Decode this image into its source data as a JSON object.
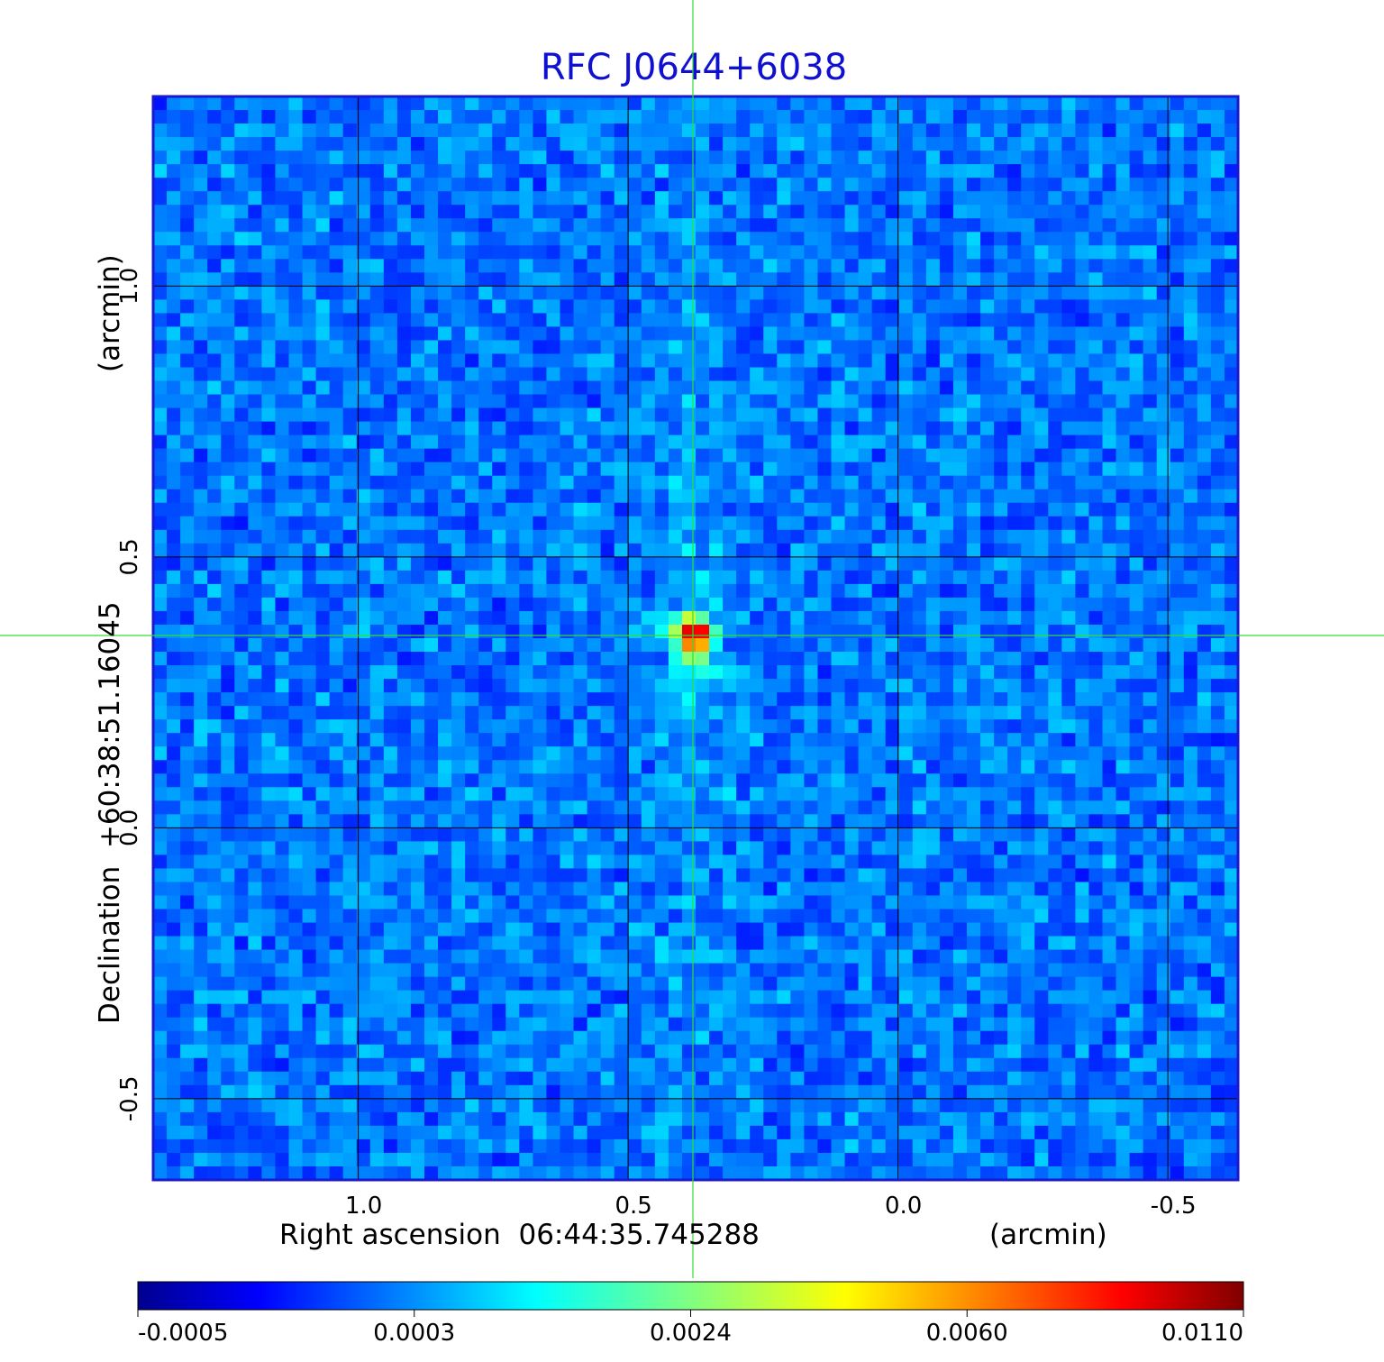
{
  "chart_data": {
    "type": "heatmap",
    "title": "RFC J0644+6038",
    "xlabel": "Right ascension  06:44:35.745288",
    "xunit": "(arcmin)",
    "ylabel": "Declination  +60:38:51.16045",
    "yunit": "(arcmin)",
    "xlim": [
      1.38,
      -0.63
    ],
    "ylim": [
      -0.65,
      1.35
    ],
    "x_ticks": [
      {
        "value": 1.0,
        "label": "1.0"
      },
      {
        "value": 0.5,
        "label": "0.5"
      },
      {
        "value": 0.0,
        "label": "0.0"
      },
      {
        "value": -0.5,
        "label": "-0.5"
      }
    ],
    "y_ticks": [
      {
        "value": 1.0,
        "label": "1.0"
      },
      {
        "value": 0.5,
        "label": "0.5"
      },
      {
        "value": 0.0,
        "label": "0.0"
      },
      {
        "value": -0.5,
        "label": "-0.5"
      }
    ],
    "grid": true,
    "crosshair": {
      "x": 0.38,
      "y": 0.355
    },
    "source": {
      "x": 0.38,
      "y": 0.355,
      "peak": 0.011
    },
    "colorbar": {
      "position": "bottom",
      "colormap": "jet",
      "tick_labels": [
        "-0.0005",
        "0.0003",
        "0.0024",
        "0.0060",
        "0.0110"
      ]
    },
    "colors": {
      "title": "#1010d0",
      "frame": "#1a1acc",
      "grid": "#000000",
      "crosshair": "#33dd33"
    }
  }
}
